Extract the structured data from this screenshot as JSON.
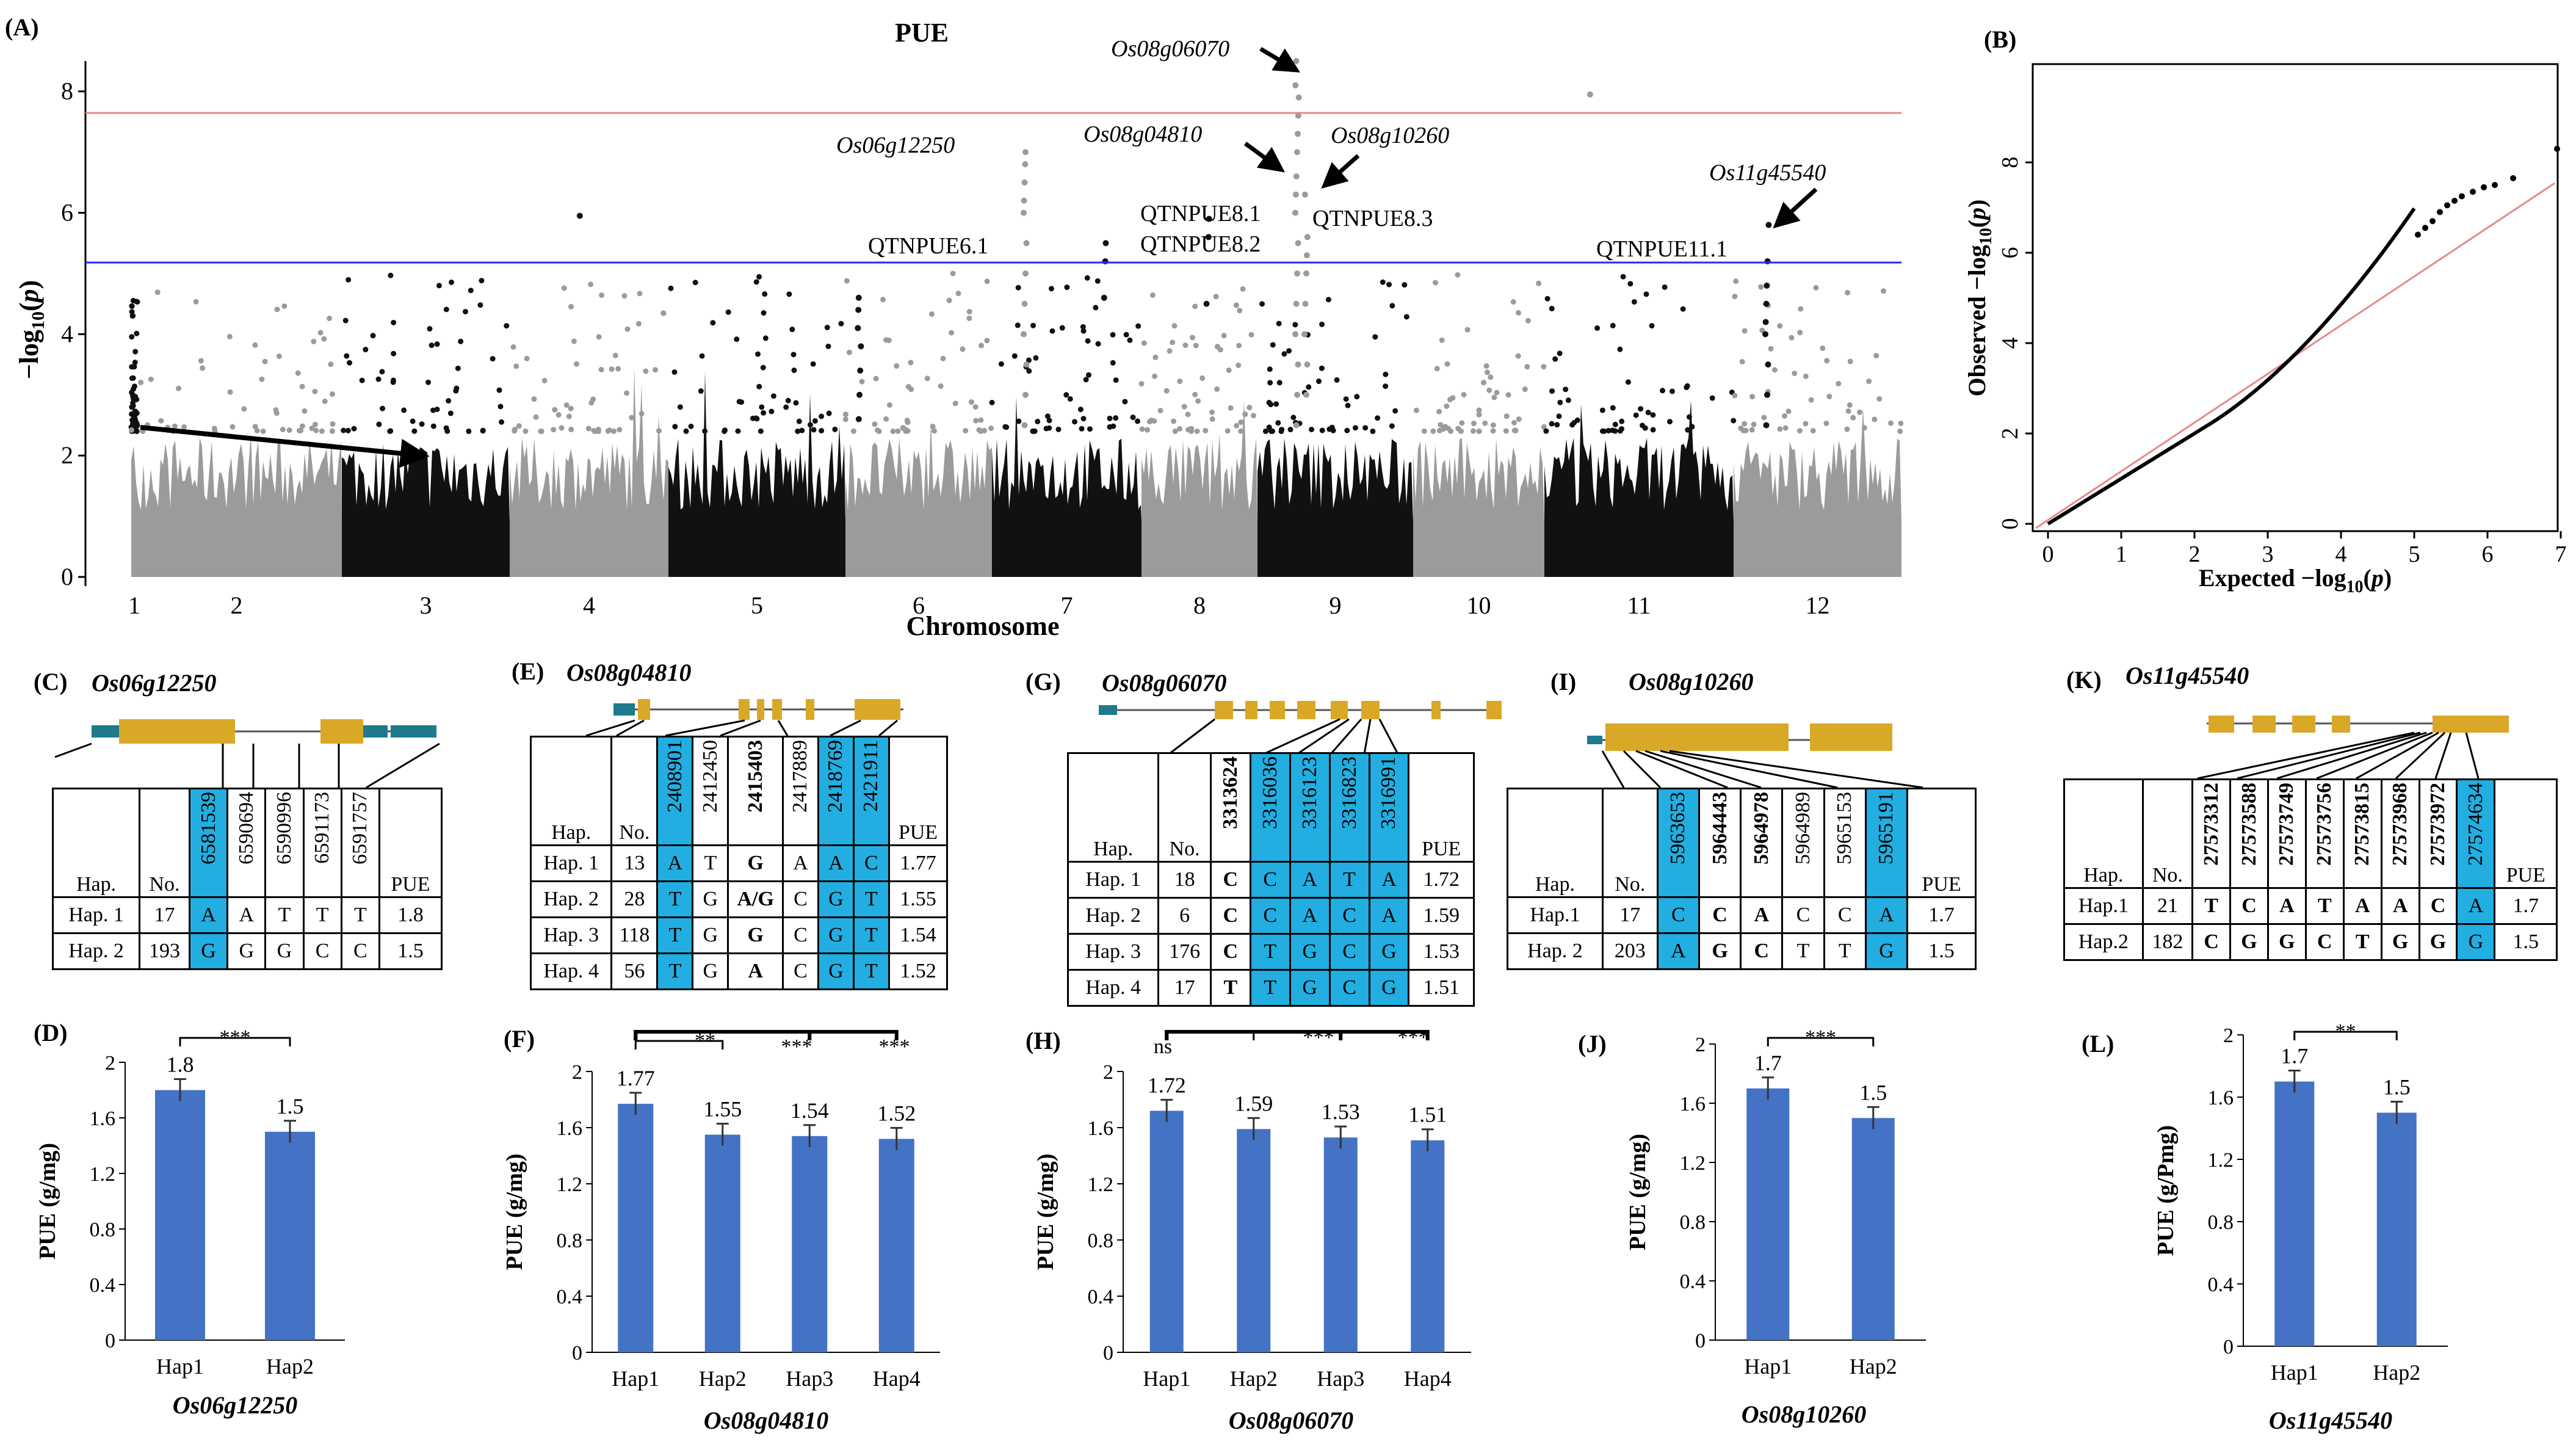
{
  "panels": {
    "A": {
      "label": "(A)",
      "title": "PUE",
      "ylabel": "−log10(p)",
      "xlabel": "Chromosome",
      "yticks": [
        "0",
        "2",
        "4",
        "6",
        "8"
      ],
      "chromosomes": [
        "1",
        "2",
        "3",
        "4",
        "5",
        "6",
        "7",
        "8",
        "9",
        "10",
        "11",
        "12"
      ],
      "genes": [
        "Os06g12250",
        "Os08g04810",
        "Os08g06070",
        "Os08g10260",
        "Os11g45540"
      ],
      "qtns": [
        "QTNPUE6.1",
        "QTNPUE8.1",
        "QTNPUE8.2",
        "QTNPUE8.3",
        "QTNPUE11.1"
      ],
      "threshold_colors": {
        "upper": "#e58a8a",
        "lower": "#2a2aff"
      }
    },
    "B": {
      "label": "(B)",
      "xlabel": "Expected −log10(p)",
      "ylabel": "Observed −log10(p)",
      "xticks": [
        "0",
        "1",
        "2",
        "3",
        "4",
        "5",
        "6",
        "7"
      ],
      "yticks": [
        "0",
        "2",
        "4",
        "6",
        "8"
      ]
    },
    "C": {
      "label": "(C)",
      "gene": "Os06g12250",
      "headers": [
        "Hap.",
        "No.",
        "6581539",
        "6590694",
        "6590996",
        "6591173",
        "6591757",
        "PUE"
      ],
      "rows": [
        [
          "Hap. 1",
          "17",
          "A",
          "A",
          "T",
          "T",
          "T",
          "1.8"
        ],
        [
          "Hap. 2",
          "193",
          "G",
          "G",
          "G",
          "C",
          "C",
          "1.5"
        ]
      ]
    },
    "D": {
      "label": "(D)",
      "gene": "Os06g12250",
      "ylabel": "PUE (g/mg)",
      "yticks": [
        "0",
        "0.4",
        "0.8",
        "1.2",
        "1.6",
        "2"
      ],
      "categories": [
        "Hap1",
        "Hap2"
      ],
      "values": [
        1.8,
        1.5
      ],
      "value_labels": [
        "1.8",
        "1.5"
      ],
      "sig": [
        "***"
      ]
    },
    "E": {
      "label": "(E)",
      "gene": "Os08g04810",
      "headers": [
        "Hap.",
        "No.",
        "2408901",
        "2412450",
        "2415403",
        "2417889",
        "2418769",
        "2421911",
        "PUE"
      ],
      "rows": [
        [
          "Hap. 1",
          "13",
          "A",
          "T",
          "G",
          "A",
          "A",
          "C",
          "1.77"
        ],
        [
          "Hap. 2",
          "28",
          "T",
          "G",
          "A/G",
          "C",
          "G",
          "T",
          "1.55"
        ],
        [
          "Hap. 3",
          "118",
          "T",
          "G",
          "G",
          "C",
          "G",
          "T",
          "1.54"
        ],
        [
          "Hap. 4",
          "56",
          "T",
          "G",
          "A",
          "C",
          "G",
          "T",
          "1.52"
        ]
      ]
    },
    "F": {
      "label": "(F)",
      "gene": "Os08g04810",
      "ylabel": "PUE (g/mg)",
      "yticks": [
        "0",
        "0.4",
        "0.8",
        "1.2",
        "1.6",
        "2"
      ],
      "categories": [
        "Hap1",
        "Hap2",
        "Hap3",
        "Hap4"
      ],
      "values": [
        1.77,
        1.55,
        1.54,
        1.52
      ],
      "value_labels": [
        "1.77",
        "1.55",
        "1.54",
        "1.52"
      ],
      "sig": [
        "**",
        "***",
        "***"
      ]
    },
    "G": {
      "label": "(G)",
      "gene": "Os08g06070",
      "headers": [
        "Hap.",
        "No.",
        "3313624",
        "3316036",
        "3316123",
        "3316823",
        "3316991",
        "PUE"
      ],
      "rows": [
        [
          "Hap. 1",
          "18",
          "C",
          "C",
          "A",
          "T",
          "A",
          "1.72"
        ],
        [
          "Hap. 2",
          "6",
          "C",
          "C",
          "A",
          "C",
          "A",
          "1.59"
        ],
        [
          "Hap. 3",
          "176",
          "C",
          "T",
          "G",
          "C",
          "G",
          "1.53"
        ],
        [
          "Hap. 4",
          "17",
          "T",
          "T",
          "G",
          "C",
          "G",
          "1.51"
        ]
      ]
    },
    "H": {
      "label": "(H)",
      "gene": "Os08g06070",
      "ylabel": "PUE (g/mg)",
      "yticks": [
        "0",
        "0.4",
        "0.8",
        "1.2",
        "1.6",
        "2"
      ],
      "categories": [
        "Hap1",
        "Hap2",
        "Hap3",
        "Hap4"
      ],
      "values": [
        1.72,
        1.59,
        1.53,
        1.51
      ],
      "value_labels": [
        "1.72",
        "1.59",
        "1.53",
        "1.51"
      ],
      "sig": [
        "ns",
        "***",
        "***"
      ]
    },
    "I": {
      "label": "(I)",
      "gene": "Os08g10260",
      "headers": [
        "Hap.",
        "No.",
        "5963653",
        "5964443",
        "5964978",
        "5964989",
        "5965153",
        "5965191",
        "PUE"
      ],
      "rows": [
        [
          "Hap.1",
          "17",
          "C",
          "C",
          "A",
          "C",
          "C",
          "A",
          "1.7"
        ],
        [
          "Hap. 2",
          "203",
          "A",
          "G",
          "C",
          "T",
          "T",
          "G",
          "1.5"
        ]
      ]
    },
    "J": {
      "label": "(J)",
      "gene": "Os08g10260",
      "ylabel": "PUE (g/mg)",
      "yticks": [
        "0",
        "0.4",
        "0.8",
        "1.2",
        "1.6",
        "2"
      ],
      "categories": [
        "Hap1",
        "Hap2"
      ],
      "values": [
        1.7,
        1.5
      ],
      "value_labels": [
        "1.7",
        "1.5"
      ],
      "sig": [
        "***"
      ]
    },
    "K": {
      "label": "(K)",
      "gene": "Os11g45540",
      "headers": [
        "Hap.",
        "No.",
        "27573312",
        "27573588",
        "27573749",
        "27573756",
        "27573815",
        "27573968",
        "27573972",
        "27574634",
        "PUE"
      ],
      "rows": [
        [
          "Hap.1",
          "21",
          "T",
          "C",
          "A",
          "T",
          "A",
          "A",
          "C",
          "A",
          "1.7"
        ],
        [
          "Hap.2",
          "182",
          "C",
          "G",
          "G",
          "C",
          "T",
          "G",
          "G",
          "G",
          "1.5"
        ]
      ]
    },
    "L": {
      "label": "(L)",
      "gene": "Os11g45540",
      "ylabel": "PUE (g/Pmg)",
      "yticks": [
        "0",
        "0.4",
        "0.8",
        "1.2",
        "1.6",
        "2"
      ],
      "categories": [
        "Hap1",
        "Hap2"
      ],
      "values": [
        1.7,
        1.5
      ],
      "value_labels": [
        "1.7",
        "1.5"
      ],
      "sig": [
        "**"
      ]
    }
  },
  "chart_data": [
    {
      "type": "scatter",
      "title": "PUE",
      "xlabel": "Chromosome",
      "ylabel": "−log10(p)",
      "ylim": [
        0,
        8.5
      ],
      "categories": [
        "1",
        "2",
        "3",
        "4",
        "5",
        "6",
        "7",
        "8",
        "9",
        "10",
        "11",
        "12"
      ],
      "thresholds": [
        7.3,
        5.0
      ]
    },
    {
      "type": "scatter",
      "xlabel": "Expected −log10(p)",
      "ylabel": "Observed −log10(p)",
      "xlim": [
        0,
        7.2
      ],
      "ylim": [
        0,
        8.5
      ]
    },
    {
      "type": "bar",
      "categories": [
        "Hap1",
        "Hap2"
      ],
      "values": [
        1.8,
        1.5
      ],
      "ylabel": "PUE (g/mg)",
      "ylim": [
        0,
        2
      ]
    },
    {
      "type": "bar",
      "categories": [
        "Hap1",
        "Hap2",
        "Hap3",
        "Hap4"
      ],
      "values": [
        1.77,
        1.55,
        1.54,
        1.52
      ],
      "ylabel": "PUE (g/mg)",
      "ylim": [
        0,
        2
      ]
    },
    {
      "type": "bar",
      "categories": [
        "Hap1",
        "Hap2",
        "Hap3",
        "Hap4"
      ],
      "values": [
        1.72,
        1.59,
        1.53,
        1.51
      ],
      "ylabel": "PUE (g/mg)",
      "ylim": [
        0,
        2
      ]
    },
    {
      "type": "bar",
      "categories": [
        "Hap1",
        "Hap2"
      ],
      "values": [
        1.7,
        1.5
      ],
      "ylabel": "PUE (g/mg)",
      "ylim": [
        0,
        2
      ]
    },
    {
      "type": "bar",
      "categories": [
        "Hap1",
        "Hap2"
      ],
      "values": [
        1.7,
        1.5
      ],
      "ylabel": "PUE (g/Pmg)",
      "ylim": [
        0,
        2
      ]
    }
  ],
  "colors": {
    "bar": "#4472c4",
    "snp_highlight": "#22aee0",
    "exon": "#d9a827",
    "utr": "#1e7a8c",
    "chr_dark": "#111111",
    "chr_light": "#9b9b9b"
  }
}
